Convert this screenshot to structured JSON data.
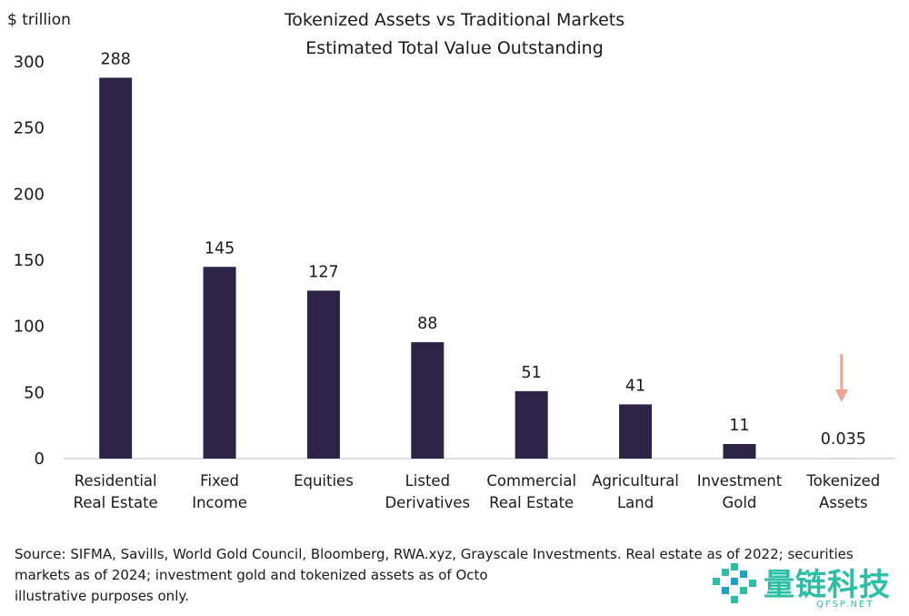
{
  "chart_data": {
    "type": "bar",
    "title_lines": [
      "Tokenized Assets vs Traditional Markets",
      "Estimated Total Value Outstanding"
    ],
    "ylabel": "$ trillion",
    "ylim": [
      0,
      300
    ],
    "yticks": [
      0,
      50,
      100,
      150,
      200,
      250,
      300
    ],
    "categories": [
      [
        "Residential",
        "Real Estate"
      ],
      [
        "Fixed",
        "Income"
      ],
      [
        "Equities"
      ],
      [
        "Listed",
        "Derivatives"
      ],
      [
        "Commercial",
        "Real Estate"
      ],
      [
        "Agricultural",
        "Land"
      ],
      [
        "Investment",
        "Gold"
      ],
      [
        "Tokenized",
        "Assets"
      ]
    ],
    "values": [
      288,
      145,
      127,
      88,
      51,
      41,
      11,
      0.035
    ],
    "data_labels": [
      "288",
      "145",
      "127",
      "88",
      "51",
      "41",
      "11",
      "0.035"
    ],
    "bar_color": "#2d2346",
    "arrow_color": "#f2a391",
    "grid": false,
    "legend": "none"
  },
  "source_note": "Source: SIFMA, Savills, World Gold Council, Bloomberg, RWA.xyz, Grayscale Investments. Real estate as of 2022; securities markets as of 2024; investment gold and tokenized assets as of Octo",
  "source_note_end": "illustrative purposes only.",
  "watermark": {
    "text": "量链科技",
    "url": "QFSP.NET",
    "color": "#2bbfa5"
  }
}
